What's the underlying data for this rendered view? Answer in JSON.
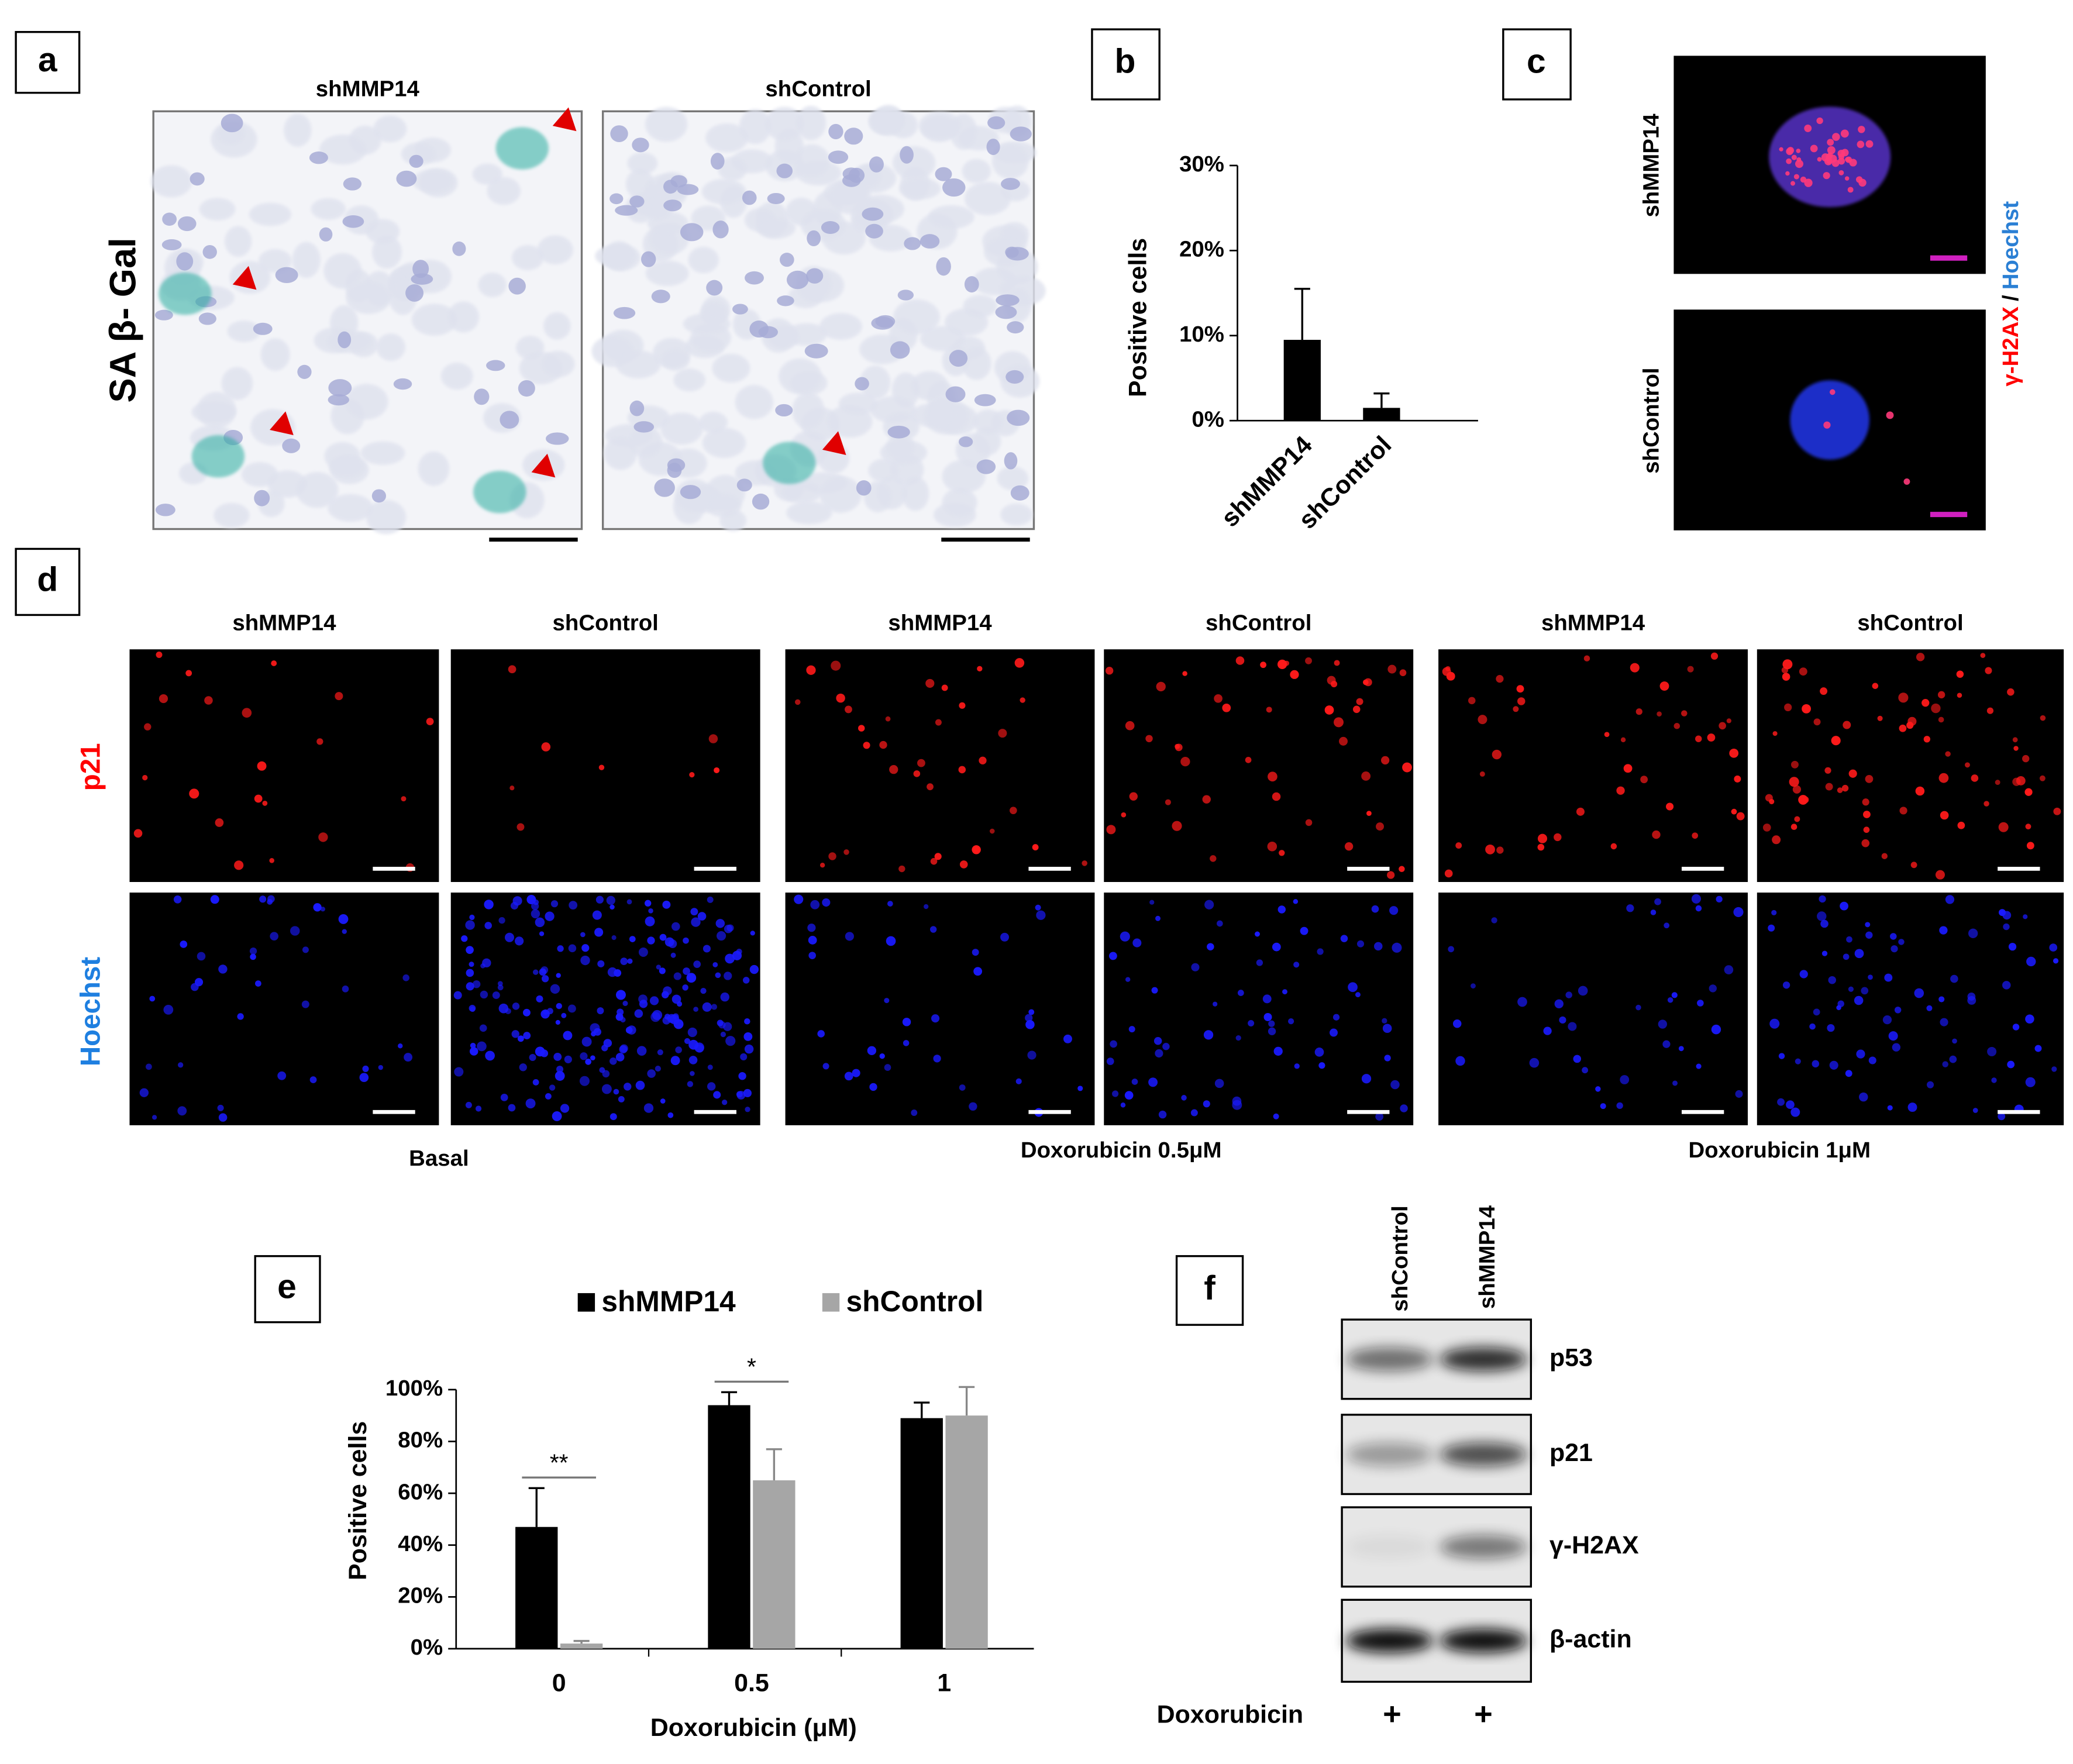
{
  "panels": {
    "a": {
      "label": "a",
      "columns": [
        "shMMP14",
        "shControl"
      ],
      "row_label": "SA β- Gal"
    },
    "c": {
      "label": "c",
      "rows": [
        "shMMP14",
        "shControl"
      ],
      "stain": [
        "γ-H2AX",
        "/",
        "Hoechst"
      ]
    },
    "d": {
      "label": "d",
      "columns": [
        "shMMP14",
        "shControl",
        "shMMP14",
        "shControl",
        "shMMP14",
        "shControl"
      ],
      "rows": [
        "p21",
        "Hoechst"
      ],
      "conditions": [
        "Basal",
        "Doxorubicin 0.5μM",
        "Doxorubicin 1μM"
      ]
    },
    "f": {
      "label": "f",
      "lanes": [
        "shControl",
        "shMMP14"
      ],
      "bands": [
        "p53",
        "p21",
        "γ-H2AX",
        "β-actin"
      ],
      "treatment": "Doxorubicin",
      "treatment_marks": [
        "+",
        "+"
      ]
    }
  },
  "chart_data": [
    {
      "type": "bar",
      "panel_label": "b",
      "ylabel": "Positive cells",
      "categories": [
        "shMMP14",
        "shControl"
      ],
      "values": [
        9.5,
        1.5
      ],
      "errors": [
        6,
        1.7
      ],
      "color": "#000000",
      "ylim": [
        0,
        30
      ],
      "yticks": [
        {
          "value": 0,
          "label": "0%"
        },
        {
          "value": 10,
          "label": "10%"
        },
        {
          "value": 20,
          "label": "20%"
        },
        {
          "value": 30,
          "label": "30%"
        }
      ]
    },
    {
      "type": "grouped_bar",
      "panel_label": "e",
      "ylabel": "Positive cells",
      "xlabel": "Doxorubicin (μM)",
      "categories": [
        "0",
        "0.5",
        "1"
      ],
      "series": [
        {
          "name": "shMMP14",
          "color": "#000000",
          "values": [
            47,
            94,
            89
          ],
          "errors": [
            15,
            5,
            6
          ]
        },
        {
          "name": "shControl",
          "color": "#a6a6a6",
          "values": [
            2,
            65,
            90
          ],
          "errors": [
            1,
            12,
            11
          ]
        }
      ],
      "annotations": [
        "**",
        "*"
      ],
      "ylim": [
        0,
        100
      ],
      "yticks": [
        {
          "value": 0,
          "label": "0%"
        },
        {
          "value": 20,
          "label": "20%"
        },
        {
          "value": 40,
          "label": "40%"
        },
        {
          "value": 60,
          "label": "60%"
        },
        {
          "value": 80,
          "label": "80%"
        },
        {
          "value": 100,
          "label": "100%"
        }
      ]
    }
  ]
}
